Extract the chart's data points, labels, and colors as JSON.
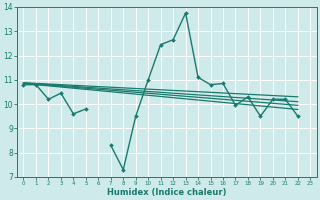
{
  "xlabel": "Humidex (Indice chaleur)",
  "bg_color": "#ceeaea",
  "line_color": "#1a7a6e",
  "xlim": [
    -0.5,
    23.5
  ],
  "ylim": [
    7,
    14
  ],
  "xticks": [
    0,
    1,
    2,
    3,
    4,
    5,
    6,
    7,
    8,
    9,
    10,
    11,
    12,
    13,
    14,
    15,
    16,
    17,
    18,
    19,
    20,
    21,
    22,
    23
  ],
  "yticks": [
    7,
    8,
    9,
    10,
    11,
    12,
    13,
    14
  ],
  "x_main": [
    0,
    1,
    2,
    3,
    4,
    5,
    6,
    7,
    8,
    9,
    10,
    11,
    12,
    13,
    14,
    15,
    16,
    17,
    18,
    19,
    20,
    21,
    22
  ],
  "y_main": [
    10.8,
    10.8,
    10.2,
    10.45,
    9.6,
    9.8,
    null,
    8.3,
    7.3,
    9.5,
    11.0,
    12.45,
    12.65,
    13.75,
    11.1,
    10.8,
    10.85,
    9.95,
    10.3,
    9.5,
    10.2,
    10.2,
    9.5
  ],
  "trend_lines": [
    [
      10.88,
      10.3
    ],
    [
      10.87,
      10.1
    ],
    [
      10.86,
      9.95
    ],
    [
      10.85,
      9.78
    ]
  ],
  "trend_x": [
    0,
    22
  ]
}
